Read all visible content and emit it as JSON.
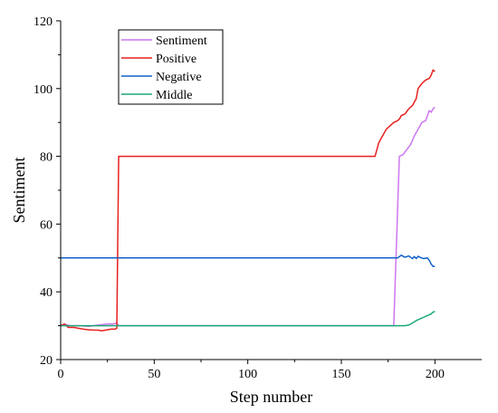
{
  "chart_data": {
    "type": "line",
    "xlabel": "Step number",
    "ylabel": "Sentiment",
    "xlim": [
      0,
      225
    ],
    "ylim": [
      20,
      120
    ],
    "xticks": [
      0,
      50,
      100,
      150,
      200
    ],
    "yticks": [
      20,
      40,
      60,
      80,
      100,
      120
    ],
    "grid": false,
    "legend": "top-left",
    "series": [
      {
        "name": "Sentiment",
        "color": "#cc77ee",
        "points": [
          [
            0,
            30
          ],
          [
            2,
            30.5
          ],
          [
            5,
            30
          ],
          [
            10,
            30
          ],
          [
            15,
            29.8
          ],
          [
            20,
            30.2
          ],
          [
            25,
            30.5
          ],
          [
            28,
            30.5
          ],
          [
            30,
            30.8
          ],
          [
            31,
            30
          ],
          [
            40,
            30
          ],
          [
            100,
            30
          ],
          [
            150,
            30
          ],
          [
            178,
            30
          ],
          [
            181,
            80
          ],
          [
            183,
            80.5
          ],
          [
            185,
            82
          ],
          [
            187,
            83.5
          ],
          [
            189,
            86
          ],
          [
            191,
            88
          ],
          [
            193,
            90
          ],
          [
            195,
            90.5
          ],
          [
            196,
            92
          ],
          [
            197,
            93.5
          ],
          [
            198,
            93
          ],
          [
            199,
            94
          ],
          [
            200,
            94.5
          ]
        ]
      },
      {
        "name": "Positive",
        "color": "#e82020",
        "points": [
          [
            0,
            30
          ],
          [
            2,
            30.5
          ],
          [
            4,
            29.5
          ],
          [
            7,
            29.5
          ],
          [
            10,
            29.2
          ],
          [
            12,
            29
          ],
          [
            15,
            28.8
          ],
          [
            18,
            28.7
          ],
          [
            20,
            28.7
          ],
          [
            22,
            28.5
          ],
          [
            25,
            28.8
          ],
          [
            27,
            29
          ],
          [
            29,
            29
          ],
          [
            30,
            29.2
          ],
          [
            31,
            80
          ],
          [
            60,
            80
          ],
          [
            100,
            80
          ],
          [
            150,
            80
          ],
          [
            168,
            80
          ],
          [
            169,
            82
          ],
          [
            170,
            84
          ],
          [
            172,
            86
          ],
          [
            174,
            88
          ],
          [
            176,
            89
          ],
          [
            178,
            90
          ],
          [
            180,
            90.5
          ],
          [
            181,
            91
          ],
          [
            182,
            92
          ],
          [
            184,
            92.5
          ],
          [
            186,
            94
          ],
          [
            188,
            95
          ],
          [
            190,
            97
          ],
          [
            191,
            100
          ],
          [
            193,
            101.5
          ],
          [
            195,
            102.5
          ],
          [
            197,
            103
          ],
          [
            198,
            104
          ],
          [
            199,
            105.5
          ],
          [
            200,
            105
          ]
        ]
      },
      {
        "name": "Negative",
        "color": "#1060c8",
        "points": [
          [
            0,
            50
          ],
          [
            50,
            50
          ],
          [
            100,
            50
          ],
          [
            150,
            50
          ],
          [
            180,
            50
          ],
          [
            182,
            50.8
          ],
          [
            184,
            50.2
          ],
          [
            186,
            50.6
          ],
          [
            188,
            49.8
          ],
          [
            189,
            50.4
          ],
          [
            190,
            49.8
          ],
          [
            191,
            50.5
          ],
          [
            192,
            50.2
          ],
          [
            194,
            49.8
          ],
          [
            196,
            50
          ],
          [
            197,
            49.3
          ],
          [
            198,
            48.2
          ],
          [
            199,
            47.5
          ],
          [
            200,
            47.5
          ]
        ]
      },
      {
        "name": "Middle",
        "color": "#1aa878",
        "points": [
          [
            0,
            30
          ],
          [
            50,
            30
          ],
          [
            100,
            30
          ],
          [
            150,
            30
          ],
          [
            184,
            30
          ],
          [
            186,
            30.2
          ],
          [
            188,
            30.8
          ],
          [
            190,
            31.5
          ],
          [
            192,
            32
          ],
          [
            194,
            32.5
          ],
          [
            196,
            33
          ],
          [
            198,
            33.5
          ],
          [
            199,
            34
          ],
          [
            200,
            34.2
          ]
        ]
      }
    ]
  }
}
